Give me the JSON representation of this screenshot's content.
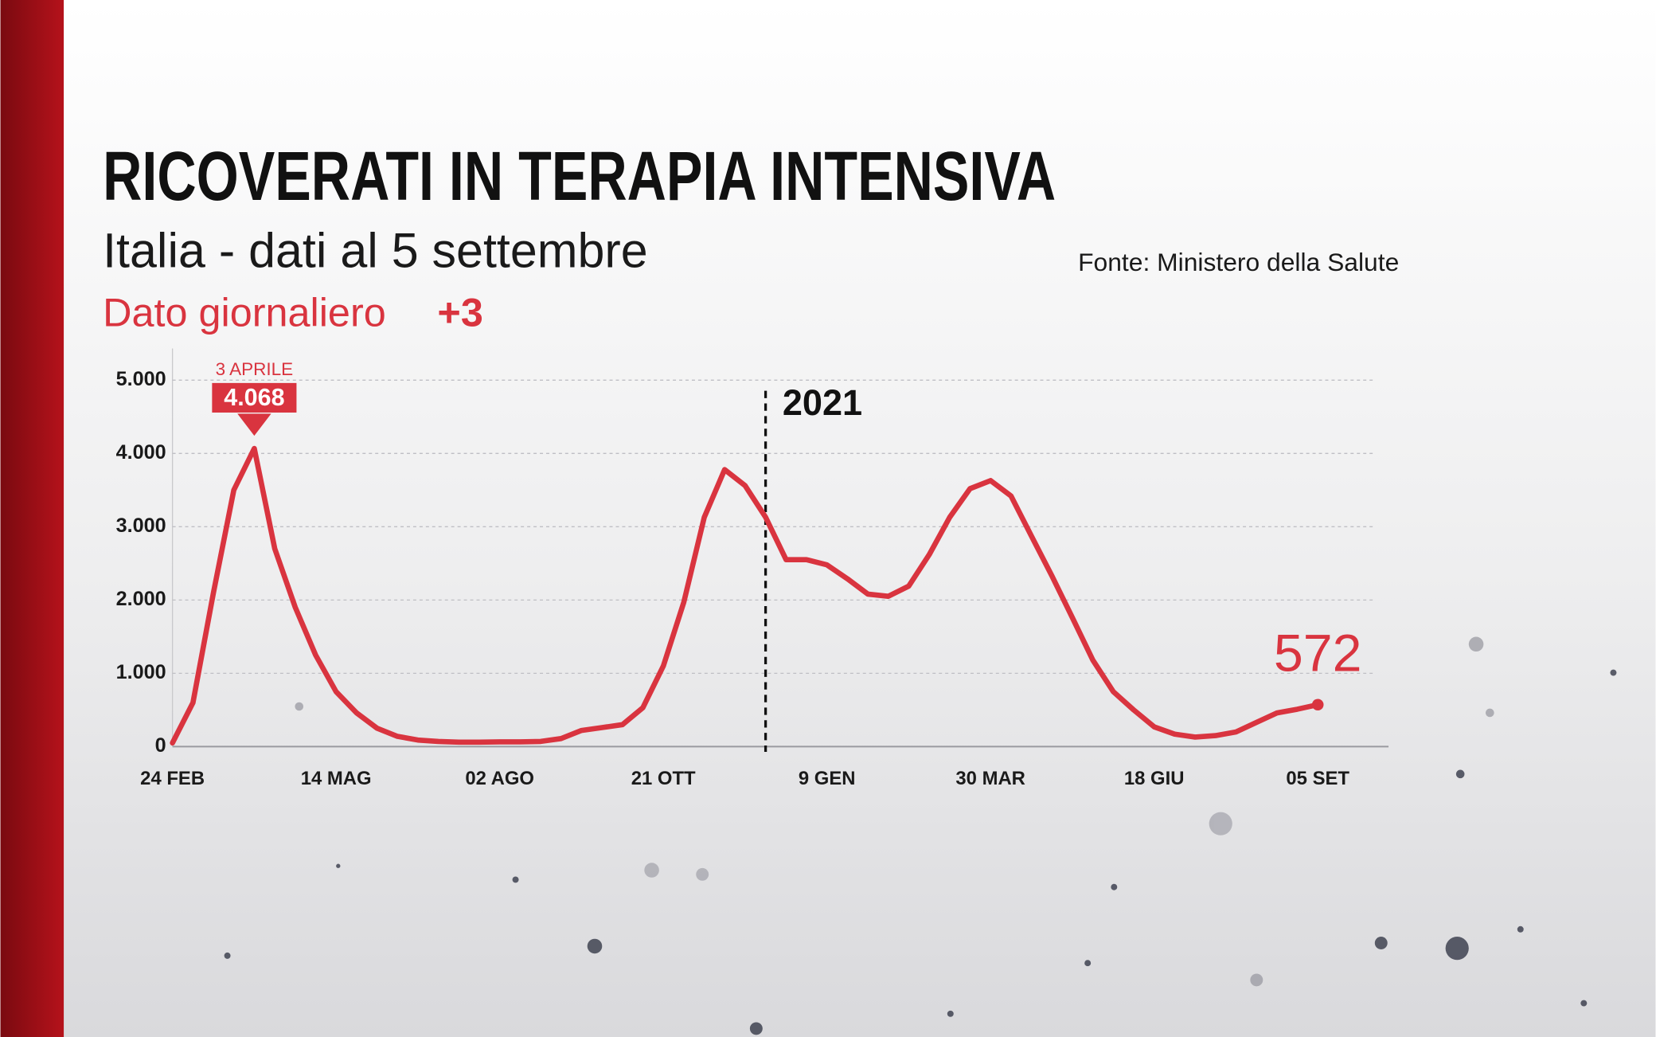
{
  "chart_data": {
    "type": "line",
    "title": "RICOVERATI IN TERAPIA INTENSIVA",
    "subtitle": "Italia - dati al 5 settembre",
    "source": "Fonte: Ministero della Salute",
    "daily_label": "Dato giornaliero",
    "daily_change": {
      "value": 3,
      "label": "+3"
    },
    "categories": [
      "24 FEB",
      null,
      null,
      null,
      null,
      null,
      null,
      null,
      "14 MAG",
      null,
      null,
      null,
      null,
      null,
      null,
      null,
      "02 AGO",
      null,
      null,
      null,
      null,
      null,
      null,
      null,
      "21 OTT",
      null,
      null,
      null,
      null,
      null,
      null,
      null,
      "9 GEN",
      null,
      null,
      null,
      null,
      null,
      null,
      null,
      "30 MAR",
      null,
      null,
      null,
      null,
      null,
      null,
      null,
      "18 GIU",
      null,
      null,
      null,
      null,
      null,
      null,
      null,
      "05 SET"
    ],
    "values": [
      50,
      600,
      2100,
      3500,
      4068,
      2700,
      1900,
      1250,
      750,
      460,
      250,
      140,
      90,
      70,
      60,
      60,
      65,
      65,
      70,
      110,
      220,
      260,
      300,
      530,
      1100,
      1970,
      3130,
      3780,
      3560,
      3130,
      2550,
      2550,
      2480,
      2290,
      2080,
      2050,
      2190,
      2620,
      3130,
      3520,
      3630,
      3420,
      2870,
      2330,
      1760,
      1180,
      750,
      500,
      270,
      170,
      130,
      150,
      200,
      330,
      460,
      510,
      572
    ],
    "color": "#d9343f",
    "peak": {
      "date": "3 APRILE",
      "value": 4068,
      "label": "4.068"
    },
    "year_marker": {
      "label": "2021",
      "x_index": 29
    },
    "ylim": [
      0,
      5000
    ],
    "yticks": [
      0,
      {
        "value": 1000,
        "label": "1.000"
      },
      {
        "value": 2000,
        "label": "2.000"
      },
      {
        "value": 3000,
        "label": "3.000"
      },
      {
        "value": 4000,
        "label": "4.000"
      },
      {
        "value": 5000,
        "label": "5.000"
      }
    ],
    "grid": true
  }
}
